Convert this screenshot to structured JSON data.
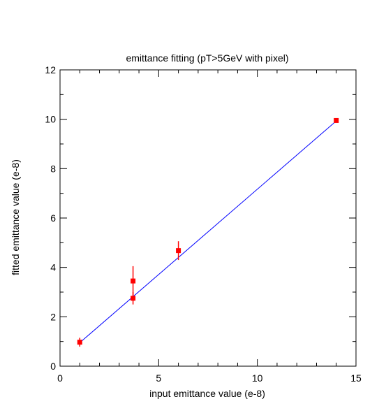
{
  "chart_data": {
    "type": "scatter",
    "title": "emittance fitting (pT>5GeV with pixel)",
    "xlabel": "input emittance value (e-8)",
    "ylabel": "fitted emittance value (e-8)",
    "xlim": [
      0,
      15
    ],
    "ylim": [
      0,
      12
    ],
    "xticks": [
      0,
      5,
      10,
      15
    ],
    "yticks": [
      0,
      2,
      4,
      6,
      8,
      10,
      12
    ],
    "grid": false,
    "series": [
      {
        "kind": "points-with-errors",
        "color": "#ff0000",
        "points": [
          {
            "x": 1.0,
            "y": 0.97,
            "err": 0.18
          },
          {
            "x": 3.7,
            "y": 3.45,
            "err": 0.6
          },
          {
            "x": 3.7,
            "y": 2.75,
            "err": 0.25
          },
          {
            "x": 6.0,
            "y": 4.68,
            "err": 0.38
          },
          {
            "x": 14.0,
            "y": 9.95,
            "err": 0.05
          }
        ]
      },
      {
        "kind": "fit-line",
        "color": "#0000ff",
        "x": [
          1.0,
          14.0
        ],
        "y": [
          0.95,
          9.93
        ]
      }
    ]
  }
}
